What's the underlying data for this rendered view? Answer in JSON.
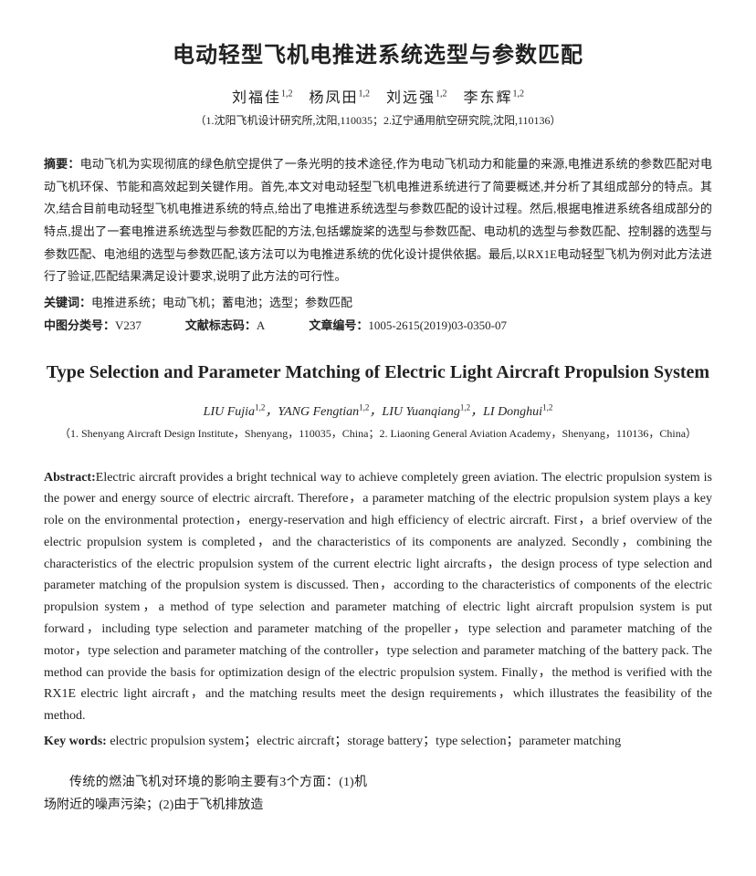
{
  "title_cn": "电动轻型飞机电推进系统选型与参数匹配",
  "authors_cn": [
    {
      "name": "刘福佳",
      "sup": "1,2"
    },
    {
      "name": "杨凤田",
      "sup": "1,2"
    },
    {
      "name": "刘远强",
      "sup": "1,2"
    },
    {
      "name": "李东辉",
      "sup": "1,2"
    }
  ],
  "affil_cn": "（1.沈阳飞机设计研究所,沈阳,110035；2.辽宁通用航空研究院,沈阳,110136）",
  "abstract_cn_label": "摘要：",
  "abstract_cn": "电动飞机为实现彻底的绿色航空提供了一条光明的技术途径,作为电动飞机动力和能量的来源,电推进系统的参数匹配对电动飞机环保、节能和高效起到关键作用。首先,本文对电动轻型飞机电推进系统进行了简要概述,并分析了其组成部分的特点。其次,结合目前电动轻型飞机电推进系统的特点,给出了电推进系统选型与参数匹配的设计过程。然后,根据电推进系统各组成部分的特点,提出了一套电推进系统选型与参数匹配的方法,包括螺旋桨的选型与参数匹配、电动机的选型与参数匹配、控制器的选型与参数匹配、电池组的选型与参数匹配,该方法可以为电推进系统的优化设计提供依据。最后,以RX1E电动轻型飞机为例对此方法进行了验证,匹配结果满足设计要求,说明了此方法的可行性。",
  "keywords_cn_label": "关键词：",
  "keywords_cn": "电推进系统；电动飞机；蓄电池；选型；参数匹配",
  "class_label": "中图分类号：",
  "class_val": "V237",
  "doccode_label": "文献标志码：",
  "doccode_val": "A",
  "articleid_label": "文章编号：",
  "articleid_val": "1005-2615(2019)03-0350-07",
  "title_en": "Type Selection and Parameter Matching of Electric Light Aircraft Propulsion System",
  "authors_en": [
    {
      "name": "LIU Fujia",
      "sup": "1,2"
    },
    {
      "name": "YANG Fengtian",
      "sup": "1,2"
    },
    {
      "name": "LIU Yuanqiang",
      "sup": "1,2"
    },
    {
      "name": "LI Donghui",
      "sup": "1,2"
    }
  ],
  "affil_en": "（1. Shenyang Aircraft Design Institute，Shenyang，110035，China；2. Liaoning General Aviation Academy，Shenyang，110136，China）",
  "abstract_en_label": "Abstract:",
  "abstract_en": "Electric aircraft provides a bright technical way to achieve completely green aviation. The electric propulsion system is the power and energy source of electric aircraft. Therefore，a parameter matching of the electric propulsion system plays a key role on the environmental protection，energy-reservation and high efficiency of electric aircraft. First，a brief overview of the electric propulsion system is completed，and the characteristics of its components are analyzed. Secondly，combining the characteristics of the electric propulsion system of the current electric light aircrafts，the design process of type selection and parameter matching of the propulsion system is discussed. Then，according to the characteristics of components of the electric propulsion system，a method of type selection and parameter matching of electric light aircraft propulsion system is put forward，including type selection and parameter matching of the propeller，type selection and parameter matching of the motor，type selection and parameter matching of the controller，type selection and parameter matching of the battery pack. The method can provide the basis for optimization design of the electric propulsion system. Finally，the method is verified with the RX1E electric light aircraft，and the matching results meet the design requirements，which illustrates the feasibility of the method.",
  "keywords_en_label": "Key words:",
  "keywords_en": " electric propulsion system；electric aircraft；storage battery；type selection；parameter matching",
  "body_p1": "传统的燃油飞机对环境的影响主要有3个方面：(1)机场附近的噪声污染；(2)由于飞机排放造"
}
